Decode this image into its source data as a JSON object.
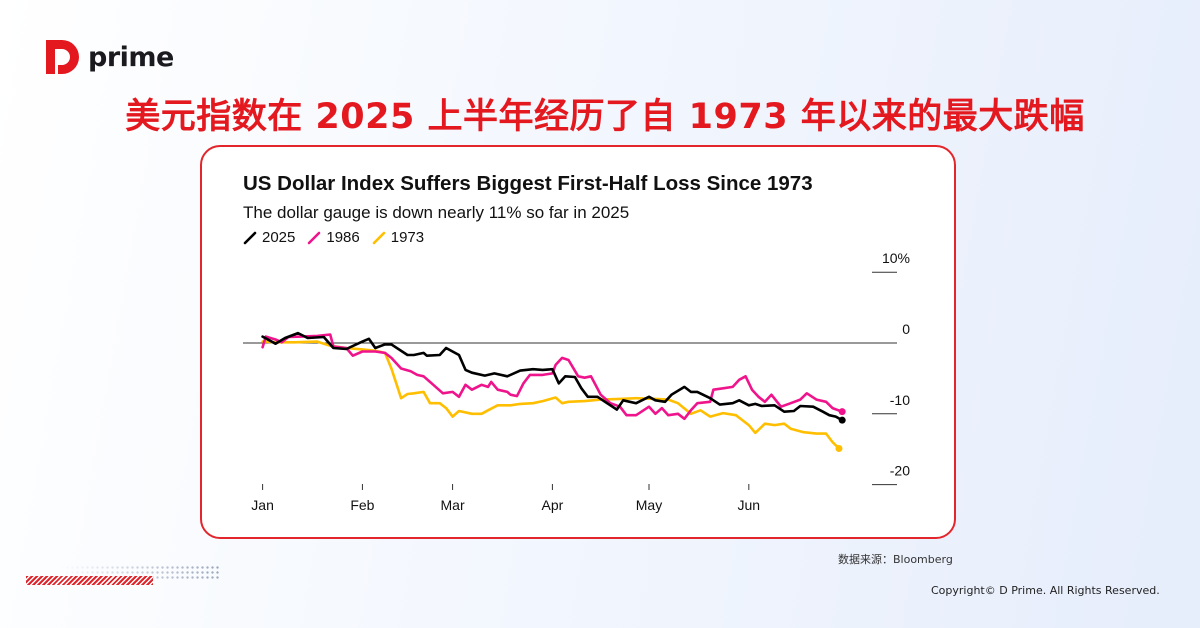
{
  "brand": {
    "name": "prime",
    "color": "#e3191f"
  },
  "headline": "美元指数在 2025 上半年经历了自 1973 年以来的最大跌幅",
  "source": "数据来源：Bloomberg",
  "copyright": "Copyright© D Prime. All Rights Reserved.",
  "chart_data": {
    "type": "line",
    "title": "US Dollar Index Suffers Biggest First-Half Loss Since 1973",
    "subtitle": "The dollar gauge is down nearly 11% so far in 2025",
    "x_ticks": [
      "Jan",
      "Feb",
      "Mar",
      "Apr",
      "May",
      "Jun"
    ],
    "y_ticks": [
      {
        "value": 10,
        "label": "10%"
      },
      {
        "value": 0,
        "label": "0"
      },
      {
        "value": -10,
        "label": "-10"
      },
      {
        "value": -20,
        "label": "-20"
      }
    ],
    "ylim": [
      -20,
      10
    ],
    "y_axis_side": "right",
    "legend_placement": "top-left",
    "series": [
      {
        "name": "2025",
        "color": "#000000",
        "points": [
          [
            "01-01",
            0.9
          ],
          [
            "01-05",
            -0.1
          ],
          [
            "01-08",
            0.7
          ],
          [
            "01-12",
            1.4
          ],
          [
            "01-15",
            0.7
          ],
          [
            "01-20",
            0.85
          ],
          [
            "01-23",
            -0.7
          ],
          [
            "01-27",
            -0.85
          ],
          [
            "02-01",
            0.2
          ],
          [
            "02-03",
            0.6
          ],
          [
            "02-05",
            -0.7
          ],
          [
            "02-08",
            -0.2
          ],
          [
            "02-10",
            -0.2
          ],
          [
            "02-15",
            -1.7
          ],
          [
            "02-17",
            -1.7
          ],
          [
            "02-20",
            -1.4
          ],
          [
            "02-21",
            -1.8
          ],
          [
            "02-25",
            -1.7
          ],
          [
            "02-27",
            -0.7
          ],
          [
            "03-03",
            -1.7
          ],
          [
            "03-05",
            -3.8
          ],
          [
            "03-07",
            -4.2
          ],
          [
            "03-11",
            -4.6
          ],
          [
            "03-14",
            -4.3
          ],
          [
            "03-18",
            -4.7
          ],
          [
            "03-22",
            -3.9
          ],
          [
            "03-26",
            -3.7
          ],
          [
            "03-29",
            -3.8
          ],
          [
            "04-01",
            -3.7
          ],
          [
            "04-03",
            -5.7
          ],
          [
            "04-05",
            -4.7
          ],
          [
            "04-08",
            -4.8
          ],
          [
            "04-10",
            -6.4
          ],
          [
            "04-12",
            -7.6
          ],
          [
            "04-15",
            -7.6
          ],
          [
            "04-18",
            -8.5
          ],
          [
            "04-21",
            -9.4
          ],
          [
            "04-23",
            -8.1
          ],
          [
            "04-27",
            -8.5
          ],
          [
            "05-01",
            -7.6
          ],
          [
            "05-03",
            -8.1
          ],
          [
            "05-06",
            -8.3
          ],
          [
            "05-08",
            -7.3
          ],
          [
            "05-12",
            -6.2
          ],
          [
            "05-14",
            -6.9
          ],
          [
            "05-16",
            -6.9
          ],
          [
            "05-20",
            -7.8
          ],
          [
            "05-23",
            -8.7
          ],
          [
            "05-27",
            -8.5
          ],
          [
            "05-29",
            -8.1
          ],
          [
            "06-01",
            -8.8
          ],
          [
            "06-03",
            -8.6
          ],
          [
            "06-05",
            -8.9
          ],
          [
            "06-09",
            -8.8
          ],
          [
            "06-12",
            -9.7
          ],
          [
            "06-15",
            -9.6
          ],
          [
            "06-17",
            -8.9
          ],
          [
            "06-21",
            -9.0
          ],
          [
            "06-24",
            -9.7
          ],
          [
            "06-26",
            -10.2
          ],
          [
            "06-28",
            -10.4
          ],
          [
            "06-30",
            -10.9
          ]
        ]
      },
      {
        "name": "1986",
        "color": "#f0148c",
        "points": [
          [
            "01-01",
            -0.6
          ],
          [
            "01-02",
            0.9
          ],
          [
            "01-05",
            0.5
          ],
          [
            "01-07",
            0.1
          ],
          [
            "01-09",
            0.85
          ],
          [
            "01-13",
            0.9
          ],
          [
            "01-18",
            1.0
          ],
          [
            "01-22",
            1.2
          ],
          [
            "01-23",
            -0.5
          ],
          [
            "01-27",
            -0.7
          ],
          [
            "01-29",
            -1.8
          ],
          [
            "02-01",
            -1.2
          ],
          [
            "02-05",
            -1.2
          ],
          [
            "02-08",
            -1.4
          ],
          [
            "02-10",
            -2.1
          ],
          [
            "02-13",
            -3.6
          ],
          [
            "02-16",
            -4.0
          ],
          [
            "02-18",
            -4.5
          ],
          [
            "02-20",
            -4.7
          ],
          [
            "02-23",
            -5.9
          ],
          [
            "02-26",
            -7.1
          ],
          [
            "03-01",
            -6.9
          ],
          [
            "03-03",
            -7.6
          ],
          [
            "03-05",
            -5.9
          ],
          [
            "03-07",
            -6.6
          ],
          [
            "03-10",
            -5.9
          ],
          [
            "03-12",
            -6.2
          ],
          [
            "03-13",
            -5.5
          ],
          [
            "03-15",
            -6.6
          ],
          [
            "03-18",
            -6.9
          ],
          [
            "03-19",
            -7.3
          ],
          [
            "03-21",
            -7.5
          ],
          [
            "03-23",
            -5.7
          ],
          [
            "03-25",
            -4.5
          ],
          [
            "03-29",
            -4.5
          ],
          [
            "04-01",
            -4.3
          ],
          [
            "04-02",
            -3.1
          ],
          [
            "04-04",
            -2.1
          ],
          [
            "04-06",
            -2.4
          ],
          [
            "04-09",
            -4.7
          ],
          [
            "04-11",
            -4.9
          ],
          [
            "04-13",
            -4.7
          ],
          [
            "04-16",
            -7.3
          ],
          [
            "04-19",
            -8.5
          ],
          [
            "04-22",
            -9.0
          ],
          [
            "04-24",
            -10.2
          ],
          [
            "04-27",
            -10.2
          ],
          [
            "05-01",
            -9.0
          ],
          [
            "05-03",
            -10.0
          ],
          [
            "05-05",
            -9.2
          ],
          [
            "05-07",
            -10.2
          ],
          [
            "05-10",
            -10.0
          ],
          [
            "05-12",
            -10.7
          ],
          [
            "05-14",
            -9.5
          ],
          [
            "05-16",
            -8.5
          ],
          [
            "05-20",
            -8.3
          ],
          [
            "05-21",
            -6.6
          ],
          [
            "05-24",
            -6.4
          ],
          [
            "05-27",
            -6.2
          ],
          [
            "05-29",
            -5.2
          ],
          [
            "05-31",
            -4.7
          ],
          [
            "06-02",
            -6.6
          ],
          [
            "06-04",
            -7.6
          ],
          [
            "06-06",
            -8.3
          ],
          [
            "06-08",
            -7.3
          ],
          [
            "06-11",
            -9.0
          ],
          [
            "06-14",
            -8.5
          ],
          [
            "06-17",
            -8.0
          ],
          [
            "06-19",
            -7.1
          ],
          [
            "06-22",
            -8.0
          ],
          [
            "06-25",
            -8.3
          ],
          [
            "06-27",
            -9.2
          ],
          [
            "06-30",
            -9.7
          ]
        ]
      },
      {
        "name": "1973",
        "color": "#ffbf00",
        "points": [
          [
            "01-01",
            0.2
          ],
          [
            "01-05",
            0.1
          ],
          [
            "01-11",
            0.1
          ],
          [
            "01-18",
            0.2
          ],
          [
            "01-22",
            -0.4
          ],
          [
            "01-27",
            -0.7
          ],
          [
            "02-01",
            -0.9
          ],
          [
            "02-05",
            -1.1
          ],
          [
            "02-08",
            -1.4
          ],
          [
            "02-10",
            -3.6
          ],
          [
            "02-13",
            -7.8
          ],
          [
            "02-15",
            -7.2
          ],
          [
            "02-17",
            -7.1
          ],
          [
            "02-20",
            -6.9
          ],
          [
            "02-22",
            -8.5
          ],
          [
            "02-25",
            -8.5
          ],
          [
            "02-27",
            -9.2
          ],
          [
            "03-01",
            -10.4
          ],
          [
            "03-03",
            -9.6
          ],
          [
            "03-07",
            -10.0
          ],
          [
            "03-10",
            -10.0
          ],
          [
            "03-12",
            -9.5
          ],
          [
            "03-15",
            -8.8
          ],
          [
            "03-19",
            -8.8
          ],
          [
            "03-22",
            -8.6
          ],
          [
            "03-26",
            -8.5
          ],
          [
            "03-29",
            -8.2
          ],
          [
            "04-02",
            -7.7
          ],
          [
            "04-04",
            -8.5
          ],
          [
            "04-06",
            -8.3
          ],
          [
            "04-11",
            -8.2
          ],
          [
            "04-16",
            -8.0
          ],
          [
            "04-22",
            -7.9
          ],
          [
            "04-27",
            -7.8
          ],
          [
            "05-03",
            -7.9
          ],
          [
            "05-07",
            -8.0
          ],
          [
            "05-10",
            -8.5
          ],
          [
            "05-14",
            -10.0
          ],
          [
            "05-17",
            -9.5
          ],
          [
            "05-20",
            -10.4
          ],
          [
            "05-24",
            -9.9
          ],
          [
            "05-28",
            -10.2
          ],
          [
            "06-01",
            -11.6
          ],
          [
            "06-03",
            -12.7
          ],
          [
            "06-06",
            -11.4
          ],
          [
            "06-09",
            -11.6
          ],
          [
            "06-12",
            -11.4
          ],
          [
            "06-14",
            -12.1
          ],
          [
            "06-18",
            -12.6
          ],
          [
            "06-22",
            -12.8
          ],
          [
            "06-25",
            -12.8
          ],
          [
            "06-27",
            -14.0
          ],
          [
            "06-29",
            -14.9
          ]
        ]
      }
    ]
  }
}
